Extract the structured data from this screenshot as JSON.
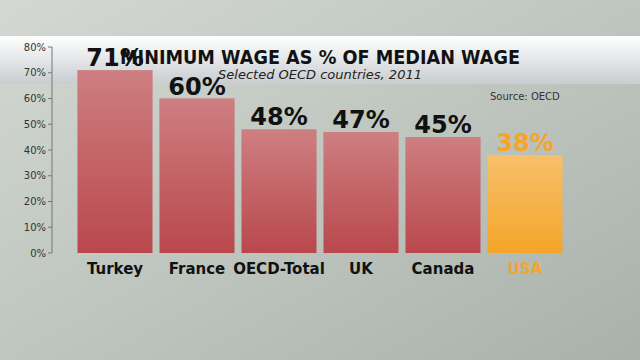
{
  "chart_data": {
    "type": "bar",
    "title": "MINIMUM WAGE AS % OF MEDIAN WAGE",
    "subtitle": "Selected OECD countries, 2011",
    "annotations": [
      "Source: OECD"
    ],
    "categories": [
      "Turkey",
      "France",
      "OECD-Total",
      "UK",
      "Canada",
      "USA"
    ],
    "values": [
      71,
      60,
      48,
      47,
      45,
      38
    ],
    "value_labels": [
      "71%",
      "60%",
      "48%",
      "47%",
      "45%",
      "38%"
    ],
    "colors": [
      "#b9484c",
      "#b9484c",
      "#b9484c",
      "#b9484c",
      "#b9484c",
      "#f4a52a"
    ],
    "ylim": [
      0,
      80
    ],
    "yticks": [
      {
        "value": 0,
        "label": "0%"
      },
      {
        "value": 10,
        "label": "10%"
      },
      {
        "value": 20,
        "label": "20%"
      },
      {
        "value": 30,
        "label": "30%"
      },
      {
        "value": 40,
        "label": "40%"
      },
      {
        "value": 50,
        "label": "50%"
      },
      {
        "value": 60,
        "label": "60%"
      },
      {
        "value": 70,
        "label": "70%"
      },
      {
        "value": 80,
        "label": "80%"
      }
    ],
    "grid": false,
    "data_labels": true
  }
}
